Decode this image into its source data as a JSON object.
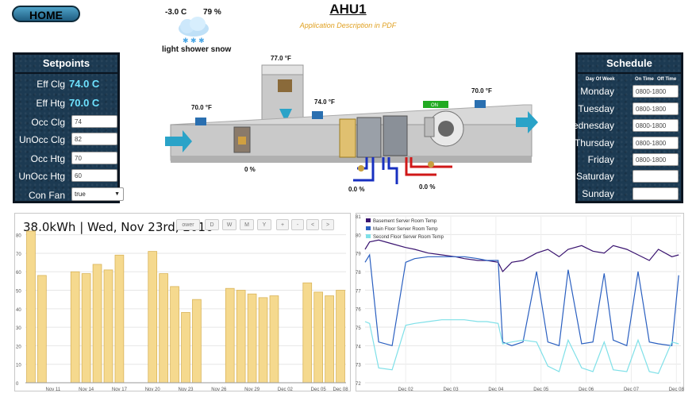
{
  "header": {
    "home_label": "HOME",
    "title": "AHU1",
    "subtitle": "Application Description in PDF"
  },
  "weather": {
    "temperature": "-3.0 C",
    "humidity": "79 %",
    "condition": "light shower snow",
    "icon": "cloud-snow-icon"
  },
  "setpoints": {
    "title": "Setpoints",
    "items": [
      {
        "label": "Eff Clg",
        "value": "74.0 C"
      },
      {
        "label": "Eff Htg",
        "value": "70.0 C"
      },
      {
        "label": "Occ Clg",
        "value": "74"
      },
      {
        "label": "UnOcc Clg",
        "value": "82"
      },
      {
        "label": "Occ Htg",
        "value": "70"
      },
      {
        "label": "UnOcc Htg",
        "value": "60"
      },
      {
        "label": "Con Fan",
        "value": "true"
      }
    ]
  },
  "schedule": {
    "title": "Schedule",
    "col_day": "Day Of Week",
    "col_on": "On Time",
    "col_off": "Off Time",
    "days": [
      {
        "day": "Monday",
        "value": "0800-1800"
      },
      {
        "day": "Tuesday",
        "value": "0800-1800"
      },
      {
        "day": "Wednesday",
        "value": "0800-1800"
      },
      {
        "day": "Thursday",
        "value": "0800-1800"
      },
      {
        "day": "Friday",
        "value": "0800-1800"
      },
      {
        "day": "Saturday",
        "value": ""
      },
      {
        "day": "Sunday",
        "value": ""
      }
    ]
  },
  "diagram": {
    "temp_return": "77.0 °F",
    "temp_outdoor": "70.0 °F",
    "temp_mixed": "74.0 °F",
    "temp_supply": "70.0 °F",
    "damper_pct": "0 %",
    "heat_valve_pct": "0.0 %",
    "cool_valve_pct": "0.0 %",
    "fan_status": "ON",
    "colors": {
      "duct": "#c9c9c9",
      "sensor": "#2a6fb0",
      "arrow": "#2aa3c8",
      "hot": "#d01818",
      "cold": "#1830c0",
      "on": "#22aa22"
    }
  },
  "energy_chart": {
    "header": "38.0kWh | Wed, Nov 23rd, 2016",
    "power_btn": "ower",
    "buttons": [
      "D",
      "W",
      "M",
      "Y"
    ],
    "nav_buttons": [
      "+",
      "-",
      "<",
      ">"
    ]
  },
  "chart_data": [
    {
      "type": "bar",
      "title": "",
      "ylim": [
        0,
        85
      ],
      "yticks": [
        0,
        10,
        20,
        30,
        40,
        50,
        60,
        70,
        80
      ],
      "xticks": [
        "Nov 11",
        "Nov 14",
        "Nov 17",
        "Nov 20",
        "Nov 23",
        "Nov 26",
        "Nov 29",
        "Dec 02",
        "Dec 05",
        "Dec 08"
      ],
      "categories": [
        "Nov 09",
        "Nov 10",
        "Nov 11",
        "Nov 12",
        "Nov 13",
        "Nov 14",
        "Nov 15",
        "Nov 16",
        "Nov 17",
        "Nov 18",
        "Nov 19",
        "Nov 20",
        "Nov 21",
        "Nov 22",
        "Nov 23",
        "Nov 24",
        "Nov 25",
        "Nov 26",
        "Nov 27",
        "Nov 28",
        "Nov 29",
        "Nov 30",
        "Dec 01",
        "Dec 02",
        "Dec 03",
        "Dec 04",
        "Dec 05",
        "Dec 06",
        "Dec 07"
      ],
      "values": [
        82,
        58,
        0,
        0,
        60,
        59,
        64,
        61,
        69,
        0,
        0,
        71,
        59,
        52,
        38,
        45,
        0,
        0,
        51,
        50,
        48,
        46,
        47,
        0,
        0,
        54,
        49,
        47,
        50
      ],
      "color": "#f5d98e",
      "grid": true
    },
    {
      "type": "line",
      "ylim": [
        72,
        81
      ],
      "yticks": [
        72,
        73,
        74,
        75,
        76,
        77,
        78,
        79,
        80,
        81
      ],
      "xticks": [
        "Dec 02",
        "Dec 03",
        "Dec 04",
        "Dec 05",
        "Dec 06",
        "Dec 07",
        "Dec 08"
      ],
      "legend_position": "top-left",
      "grid": true,
      "x": [
        0,
        0.1,
        0.3,
        0.6,
        0.9,
        1.1,
        1.4,
        1.7,
        2.0,
        2.2,
        2.5,
        2.7,
        2.95,
        3.05,
        3.25,
        3.5,
        3.8,
        4.05,
        4.3,
        4.5,
        4.8,
        5.05,
        5.3,
        5.5,
        5.8,
        6.05,
        6.3,
        6.5,
        6.8,
        6.95
      ],
      "series": [
        {
          "name": "Basement Server Room Temp",
          "color": "#3a1470",
          "values": [
            79.2,
            79.6,
            79.7,
            79.5,
            79.3,
            79.2,
            79.0,
            78.9,
            78.8,
            78.7,
            78.6,
            78.6,
            78.5,
            78.0,
            78.5,
            78.6,
            79.0,
            79.2,
            78.8,
            79.2,
            79.4,
            79.1,
            79.0,
            79.4,
            79.2,
            78.9,
            78.6,
            79.2,
            78.8,
            78.9
          ]
        },
        {
          "name": "Main Floor Server Room Temp",
          "color": "#2a5fc0",
          "values": [
            78.5,
            78.9,
            74.2,
            74.0,
            78.5,
            78.7,
            78.8,
            78.8,
            78.8,
            78.8,
            78.7,
            78.6,
            78.6,
            74.2,
            74.0,
            74.2,
            78.0,
            74.2,
            74.0,
            78.1,
            74.1,
            74.2,
            77.9,
            74.3,
            74.0,
            78.0,
            74.2,
            74.1,
            74.0,
            77.8
          ]
        },
        {
          "name": "Second Floor Server Room Temp",
          "color": "#7fe0e8",
          "values": [
            75.3,
            75.2,
            72.8,
            72.7,
            75.1,
            75.2,
            75.3,
            75.4,
            75.4,
            75.4,
            75.3,
            75.3,
            75.2,
            74.1,
            74.2,
            74.3,
            74.2,
            72.9,
            72.6,
            74.3,
            72.8,
            72.6,
            74.2,
            72.7,
            72.6,
            74.3,
            72.6,
            72.5,
            74.2,
            74.1
          ]
        }
      ]
    }
  ]
}
